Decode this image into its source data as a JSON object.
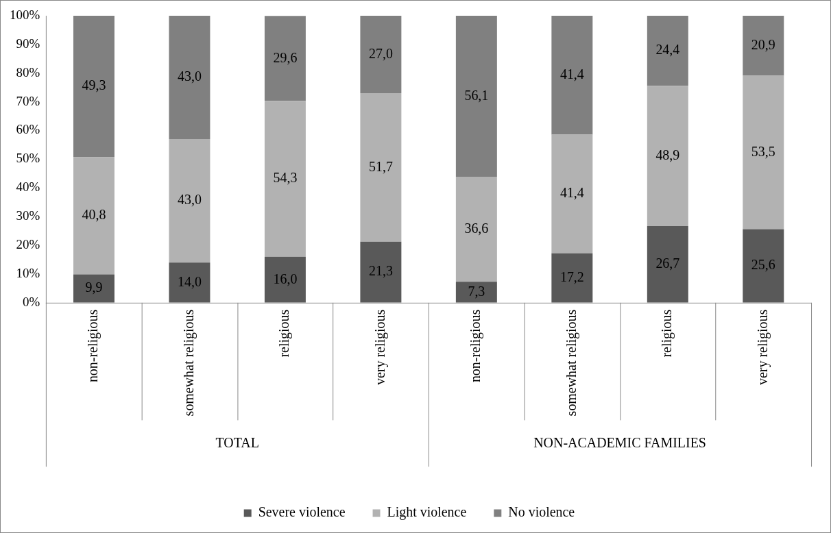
{
  "chart_data": {
    "type": "bar",
    "stacked": true,
    "categories": [
      "non-religious",
      "somewhat religious",
      "religious",
      "very religious",
      "non-religious",
      "somewhat religious",
      "religious",
      "very religious"
    ],
    "series": [
      {
        "name": "Severe violence",
        "color": "#595959",
        "values": [
          9.9,
          14.0,
          16.0,
          21.3,
          7.3,
          17.2,
          26.7,
          25.6
        ],
        "value_labels": [
          "9,9",
          "14,0",
          "16,0",
          "21,3",
          "7,3",
          "17,2",
          "26,7",
          "25,6"
        ]
      },
      {
        "name": "Light violence",
        "color": "#b2b2b2",
        "values": [
          40.8,
          43.0,
          54.3,
          51.7,
          36.6,
          41.4,
          48.9,
          53.5
        ],
        "value_labels": [
          "40,8",
          "43,0",
          "54,3",
          "51,7",
          "36,6",
          "41,4",
          "48,9",
          "53,5"
        ]
      },
      {
        "name": "No violence",
        "color": "#808080",
        "values": [
          49.3,
          43.0,
          29.6,
          27.0,
          56.1,
          41.4,
          24.4,
          20.9
        ],
        "value_labels": [
          "49,3",
          "43,0",
          "29,6",
          "27,0",
          "56,1",
          "41,4",
          "24,4",
          "20,9"
        ]
      }
    ],
    "ylim": [
      0,
      100
    ],
    "yticks": [
      {
        "value": 0,
        "label": "0%"
      },
      {
        "value": 10,
        "label": "10%"
      },
      {
        "value": 20,
        "label": "20%"
      },
      {
        "value": 30,
        "label": "30%"
      },
      {
        "value": 40,
        "label": "40%"
      },
      {
        "value": 50,
        "label": "50%"
      },
      {
        "value": 60,
        "label": "60%"
      },
      {
        "value": 70,
        "label": "70%"
      },
      {
        "value": 80,
        "label": "80%"
      },
      {
        "value": 90,
        "label": "90%"
      },
      {
        "value": 100,
        "label": "100%"
      }
    ],
    "annotations": [
      "TOTAL",
      "NON-ACADEMIC FAMILIES"
    ],
    "legend": "bottom",
    "grid": false
  }
}
